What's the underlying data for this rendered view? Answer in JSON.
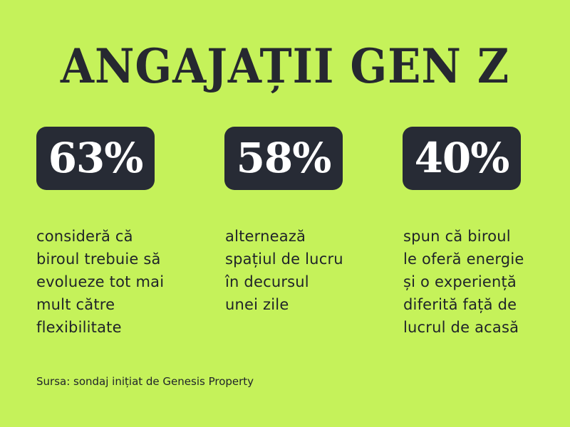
{
  "title": "ANGAJAȚII GEN Z",
  "stats": [
    {
      "value": "63%",
      "description": [
        "consideră că",
        "biroul trebuie să",
        "evolueze tot mai",
        "mult către",
        "flexibilitate"
      ]
    },
    {
      "value": "58%",
      "description": [
        "alternează",
        "spațiul de lucru",
        "în decursul",
        "unei zile"
      ]
    },
    {
      "value": "40%",
      "description": [
        "spun că biroul",
        "le oferă energie",
        "și o experiență",
        "diferită față de",
        "lucrul de acasă"
      ]
    }
  ],
  "source": "Sursa: sondaj inițiat de Genesis Property",
  "colors": {
    "background": "#c5f25a",
    "badge": "#272b35",
    "text": "#23262c"
  }
}
